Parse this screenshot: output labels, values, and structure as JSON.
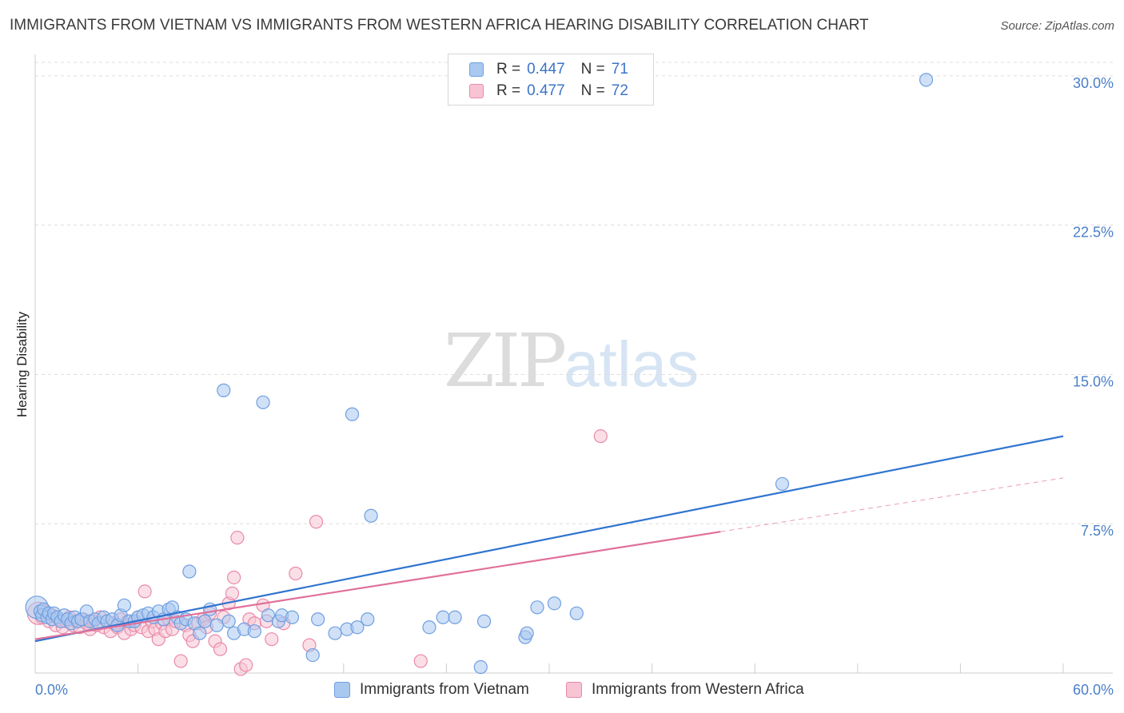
{
  "title": "IMMIGRANTS FROM VIETNAM VS IMMIGRANTS FROM WESTERN AFRICA HEARING DISABILITY CORRELATION CHART",
  "source": "Source: ZipAtlas.com",
  "watermark": {
    "zip": "ZIP",
    "atlas": "atlas"
  },
  "legend": {
    "r_label": "R =",
    "n_label": "N =",
    "rows": [
      {
        "r": "0.447",
        "n": "71",
        "color": "#a9c8f0",
        "border": "#6f9fe0"
      },
      {
        "r": "0.477",
        "n": "72",
        "color": "#f8c4d4",
        "border": "#e98aaa"
      }
    ]
  },
  "bottom_legend": {
    "items": [
      "Immigrants from Vietnam",
      "Immigrants from Western Africa"
    ]
  },
  "colors": {
    "vietnam_fill": "#a9c8f0",
    "vietnam_stroke": "#6f9fe0",
    "vietnam_line": "#2f74d0",
    "wafrica_fill": "#f8c4d4",
    "wafrica_stroke": "#e98aaa",
    "wafrica_line": "#e0709a",
    "grid": "#dddddd",
    "axis_text": "#4a7fc8"
  },
  "chart_data": {
    "type": "scatter",
    "title": "IMMIGRANTS FROM VIETNAM VS IMMIGRANTS FROM WESTERN AFRICA HEARING DISABILITY CORRELATION CHART",
    "xlabel": "",
    "ylabel": "Hearing Disability",
    "xlim": [
      0,
      60
    ],
    "ylim": [
      0,
      31
    ],
    "x_tick_labels": [
      "0.0%",
      "60.0%"
    ],
    "y_ticks": [
      7.5,
      15.0,
      22.5,
      30.0
    ],
    "y_tick_labels": [
      "7.5%",
      "15.0%",
      "22.5%",
      "30.0%"
    ],
    "grid": true,
    "legend_position": "top-center",
    "series": [
      {
        "name": "Immigrants from Vietnam",
        "r": 0.447,
        "n": 71,
        "trend": {
          "x": [
            0,
            60
          ],
          "y": [
            1.6,
            11.9
          ]
        },
        "points": [
          [
            0.1,
            3.3
          ],
          [
            0.3,
            3.1
          ],
          [
            0.4,
            2.9
          ],
          [
            0.5,
            3.2
          ],
          [
            0.7,
            2.8
          ],
          [
            0.8,
            3.0
          ],
          [
            1.0,
            2.7
          ],
          [
            1.1,
            3.0
          ],
          [
            1.3,
            2.8
          ],
          [
            1.5,
            2.6
          ],
          [
            1.7,
            2.9
          ],
          [
            1.9,
            2.7
          ],
          [
            2.1,
            2.5
          ],
          [
            2.3,
            2.8
          ],
          [
            2.5,
            2.6
          ],
          [
            2.7,
            2.7
          ],
          [
            3.0,
            3.1
          ],
          [
            3.2,
            2.6
          ],
          [
            3.5,
            2.7
          ],
          [
            3.7,
            2.5
          ],
          [
            4.0,
            2.8
          ],
          [
            4.2,
            2.6
          ],
          [
            4.5,
            2.7
          ],
          [
            4.8,
            2.4
          ],
          [
            5.0,
            2.9
          ],
          [
            5.2,
            3.4
          ],
          [
            5.5,
            2.6
          ],
          [
            5.8,
            2.6
          ],
          [
            6.0,
            2.8
          ],
          [
            6.3,
            2.9
          ],
          [
            6.6,
            3.0
          ],
          [
            6.9,
            2.8
          ],
          [
            7.2,
            3.1
          ],
          [
            7.5,
            2.7
          ],
          [
            7.8,
            3.2
          ],
          [
            8.0,
            3.3
          ],
          [
            8.3,
            2.8
          ],
          [
            8.5,
            2.5
          ],
          [
            8.8,
            2.7
          ],
          [
            9.0,
            5.1
          ],
          [
            9.3,
            2.5
          ],
          [
            9.6,
            2.0
          ],
          [
            9.9,
            2.6
          ],
          [
            10.2,
            3.2
          ],
          [
            10.6,
            2.4
          ],
          [
            11.0,
            14.2
          ],
          [
            11.3,
            2.6
          ],
          [
            11.6,
            2.0
          ],
          [
            12.2,
            2.2
          ],
          [
            12.8,
            2.1
          ],
          [
            13.3,
            13.6
          ],
          [
            13.6,
            2.9
          ],
          [
            14.2,
            2.6
          ],
          [
            14.4,
            2.9
          ],
          [
            15.0,
            2.8
          ],
          [
            16.2,
            0.9
          ],
          [
            16.5,
            2.7
          ],
          [
            17.5,
            2.0
          ],
          [
            18.2,
            2.2
          ],
          [
            18.5,
            13.0
          ],
          [
            18.8,
            2.3
          ],
          [
            19.4,
            2.7
          ],
          [
            19.6,
            7.9
          ],
          [
            23.0,
            2.3
          ],
          [
            23.8,
            2.8
          ],
          [
            24.5,
            2.8
          ],
          [
            26.0,
            0.3
          ],
          [
            26.2,
            2.6
          ],
          [
            28.6,
            1.8
          ],
          [
            28.7,
            2.0
          ],
          [
            29.3,
            3.3
          ],
          [
            30.3,
            3.5
          ],
          [
            31.6,
            3.0
          ],
          [
            43.6,
            9.5
          ],
          [
            52.0,
            29.8
          ]
        ]
      },
      {
        "name": "Immigrants from Western Africa",
        "r": 0.477,
        "n": 72,
        "trend": {
          "x": [
            0,
            40
          ],
          "y": [
            1.7,
            7.1
          ]
        },
        "trend_extension": {
          "x": [
            40,
            60
          ],
          "y": [
            7.1,
            9.8
          ]
        },
        "points": [
          [
            0.2,
            3.0
          ],
          [
            0.4,
            2.8
          ],
          [
            0.6,
            3.1
          ],
          [
            0.8,
            2.6
          ],
          [
            1.0,
            2.9
          ],
          [
            1.2,
            2.4
          ],
          [
            1.4,
            2.7
          ],
          [
            1.6,
            2.3
          ],
          [
            1.8,
            2.6
          ],
          [
            2.0,
            2.8
          ],
          [
            2.2,
            2.4
          ],
          [
            2.4,
            2.6
          ],
          [
            2.6,
            2.3
          ],
          [
            2.8,
            2.7
          ],
          [
            3.0,
            2.5
          ],
          [
            3.2,
            2.2
          ],
          [
            3.4,
            2.6
          ],
          [
            3.6,
            2.4
          ],
          [
            3.8,
            2.8
          ],
          [
            4.0,
            2.3
          ],
          [
            4.2,
            2.6
          ],
          [
            4.4,
            2.1
          ],
          [
            4.6,
            2.5
          ],
          [
            4.8,
            2.3
          ],
          [
            5.0,
            2.7
          ],
          [
            5.2,
            2.0
          ],
          [
            5.4,
            2.6
          ],
          [
            5.6,
            2.2
          ],
          [
            5.8,
            2.4
          ],
          [
            6.0,
            2.8
          ],
          [
            6.2,
            2.3
          ],
          [
            6.4,
            4.1
          ],
          [
            6.6,
            2.1
          ],
          [
            6.8,
            2.6
          ],
          [
            7.0,
            2.2
          ],
          [
            7.2,
            1.7
          ],
          [
            7.4,
            2.5
          ],
          [
            7.6,
            2.1
          ],
          [
            7.8,
            2.7
          ],
          [
            8.0,
            2.2
          ],
          [
            8.2,
            2.6
          ],
          [
            8.5,
            0.6
          ],
          [
            8.8,
            2.4
          ],
          [
            9.0,
            1.9
          ],
          [
            9.2,
            1.6
          ],
          [
            9.5,
            2.5
          ],
          [
            9.8,
            2.7
          ],
          [
            10.0,
            2.3
          ],
          [
            10.2,
            3.0
          ],
          [
            10.5,
            1.6
          ],
          [
            10.8,
            1.2
          ],
          [
            11.0,
            2.8
          ],
          [
            11.3,
            3.5
          ],
          [
            11.5,
            4.0
          ],
          [
            11.6,
            4.8
          ],
          [
            11.8,
            6.8
          ],
          [
            12.0,
            0.2
          ],
          [
            12.3,
            0.4
          ],
          [
            12.5,
            2.7
          ],
          [
            12.8,
            2.5
          ],
          [
            13.3,
            3.4
          ],
          [
            13.5,
            2.6
          ],
          [
            13.8,
            1.7
          ],
          [
            14.5,
            2.5
          ],
          [
            15.2,
            5.0
          ],
          [
            16.0,
            1.4
          ],
          [
            16.4,
            7.6
          ],
          [
            22.5,
            0.6
          ],
          [
            33.0,
            11.9
          ]
        ]
      }
    ]
  }
}
